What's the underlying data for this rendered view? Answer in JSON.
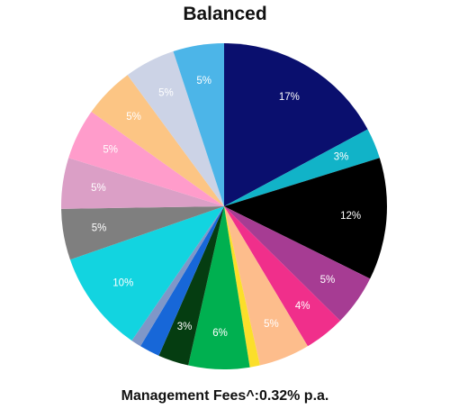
{
  "chart_data": {
    "type": "pie",
    "title": "Balanced",
    "slices": [
      {
        "value": 17,
        "label": "17%",
        "color": "#0a0f6e"
      },
      {
        "value": 3,
        "label": "3%",
        "color": "#11b3c8"
      },
      {
        "value": 12,
        "label": "12%",
        "color": "#000000"
      },
      {
        "value": 5,
        "label": "5%",
        "color": "#a63c93"
      },
      {
        "value": 4,
        "label": "4%",
        "color": "#f02f8b"
      },
      {
        "value": 5,
        "label": "5%",
        "color": "#fdbd8c"
      },
      {
        "value": 1,
        "label": "",
        "color": "#fbdf2a"
      },
      {
        "value": 6,
        "label": "6%",
        "color": "#00b050"
      },
      {
        "value": 3,
        "label": "3%",
        "color": "#053d11"
      },
      {
        "value": 2,
        "label": "",
        "color": "#1767d8"
      },
      {
        "value": 1,
        "label": "",
        "color": "#7f97c8"
      },
      {
        "value": 10,
        "label": "10%",
        "color": "#12d4e0"
      },
      {
        "value": 5,
        "label": "5%",
        "color": "#7f7f7f"
      },
      {
        "value": 5,
        "label": "5%",
        "color": "#db9fc6"
      },
      {
        "value": 5,
        "label": "5%",
        "color": "#ff9ccb"
      },
      {
        "value": 5,
        "label": "5%",
        "color": "#fcc584"
      },
      {
        "value": 5,
        "label": "5%",
        "color": "#ccd3e6"
      },
      {
        "value": 5,
        "label": "5%",
        "color": "#4cb5e8"
      }
    ]
  },
  "footer": {
    "fee_note": "Management Fees^:0.32% p.a."
  }
}
